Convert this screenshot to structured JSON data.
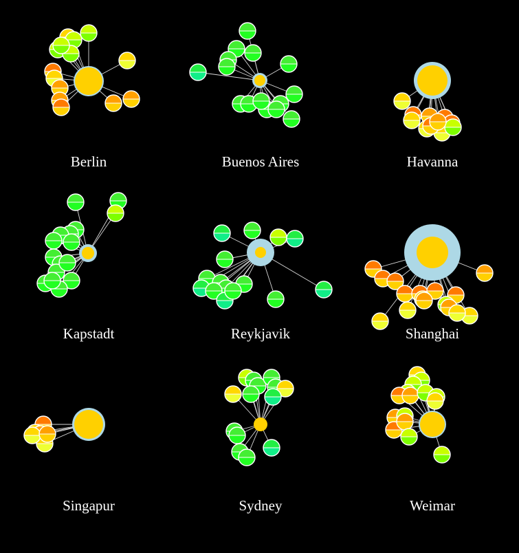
{
  "colors": {
    "background": "#000000",
    "edge": "#d9d9d9",
    "node_stroke": "#ffffff",
    "hub_fill": "#ffd000",
    "hub_halo": "#add8e6"
  },
  "palette": {
    "orange": [
      "#ff7a00",
      "#ffd000"
    ],
    "amber": [
      "#ffa000",
      "#ffd000"
    ],
    "yellow": [
      "#ffd700",
      "#eeff33"
    ],
    "lime": [
      "#c8ff00",
      "#7dff00"
    ],
    "green": [
      "#44ee33",
      "#22ff22"
    ],
    "teal": [
      "#22ee44",
      "#11ee88"
    ]
  },
  "cities": [
    {
      "name": "Berlin",
      "hub": {
        "r": 20,
        "halo": 2
      },
      "nodes": [
        [
          "lime",
          0,
          -70
        ],
        [
          "yellow",
          -30,
          -64
        ],
        [
          "lime",
          -22,
          -60
        ],
        [
          "lime",
          -45,
          -46
        ],
        [
          "orange",
          -52,
          -14
        ],
        [
          "yellow",
          -50,
          -4
        ],
        [
          "amber",
          -42,
          10
        ],
        [
          "amber",
          -42,
          28
        ],
        [
          "orange",
          -40,
          38
        ],
        [
          "yellow",
          56,
          -30
        ],
        [
          "amber",
          36,
          32
        ],
        [
          "amber",
          62,
          26
        ],
        [
          "lime",
          -26,
          -40
        ],
        [
          "lime",
          -40,
          -52
        ]
      ]
    },
    {
      "name": "Buenos Aires",
      "hub": {
        "r": 8,
        "halo": 3
      },
      "nodes": [
        [
          "green",
          -18,
          -72
        ],
        [
          "green",
          -34,
          -46
        ],
        [
          "green",
          -10,
          -40
        ],
        [
          "green",
          -46,
          -30
        ],
        [
          "green",
          -48,
          -20
        ],
        [
          "teal",
          -90,
          -12
        ],
        [
          "green",
          42,
          -24
        ],
        [
          "green",
          50,
          20
        ],
        [
          "green",
          -28,
          34
        ],
        [
          "green",
          -16,
          34
        ],
        [
          "green",
          10,
          42
        ],
        [
          "green",
          30,
          34
        ],
        [
          "green",
          46,
          56
        ],
        [
          "green",
          2,
          30
        ],
        [
          "green",
          24,
          42
        ]
      ]
    },
    {
      "name": "Havanna",
      "hub": {
        "r": 22,
        "halo": 5
      },
      "nodes": [
        [
          "yellow",
          -44,
          30
        ],
        [
          "orange",
          -28,
          50
        ],
        [
          "amber",
          -4,
          52
        ],
        [
          "orange",
          18,
          54
        ],
        [
          "orange",
          28,
          62
        ],
        [
          "yellow",
          14,
          76
        ],
        [
          "lime",
          30,
          68
        ],
        [
          "yellow",
          -8,
          70
        ],
        [
          "orange",
          -2,
          66
        ],
        [
          "amber",
          8,
          60
        ],
        [
          "yellow",
          -30,
          58
        ]
      ]
    },
    {
      "name": "Kapstadt",
      "hub": {
        "r": 9,
        "halo": 4
      },
      "nodes": [
        [
          "green",
          -18,
          -74
        ],
        [
          "green",
          44,
          -76
        ],
        [
          "lime",
          40,
          -58
        ],
        [
          "green",
          -18,
          -34
        ],
        [
          "green",
          -26,
          -28
        ],
        [
          "green",
          -40,
          -26
        ],
        [
          "green",
          -50,
          -18
        ],
        [
          "green",
          -24,
          -16
        ],
        [
          "green",
          -50,
          6
        ],
        [
          "green",
          -40,
          16
        ],
        [
          "green",
          -46,
          28
        ],
        [
          "green",
          -24,
          40
        ],
        [
          "green",
          -62,
          44
        ],
        [
          "green",
          -42,
          52
        ],
        [
          "green",
          -52,
          40
        ],
        [
          "green",
          -30,
          14
        ]
      ]
    },
    {
      "name": "Reykjavik",
      "hub": {
        "r": 8,
        "halo": 12
      },
      "nodes": [
        [
          "teal",
          -56,
          -28
        ],
        [
          "green",
          -12,
          -32
        ],
        [
          "lime",
          26,
          -22
        ],
        [
          "teal",
          50,
          -20
        ],
        [
          "green",
          -52,
          10
        ],
        [
          "green",
          -78,
          38
        ],
        [
          "green",
          -58,
          44
        ],
        [
          "green",
          -50,
          52
        ],
        [
          "teal",
          -86,
          52
        ],
        [
          "green",
          -68,
          56
        ],
        [
          "teal",
          -52,
          70
        ],
        [
          "green",
          -24,
          46
        ],
        [
          "green",
          22,
          68
        ],
        [
          "teal",
          92,
          54
        ],
        [
          "green",
          -40,
          56
        ]
      ]
    },
    {
      "name": "Shanghai",
      "hub": {
        "r": 23,
        "halo": 18
      },
      "nodes": [
        [
          "orange",
          -86,
          24
        ],
        [
          "orange",
          -72,
          38
        ],
        [
          "orange",
          -54,
          42
        ],
        [
          "orange",
          -40,
          60
        ],
        [
          "orange",
          -18,
          60
        ],
        [
          "orange",
          4,
          56
        ],
        [
          "orange",
          34,
          62
        ],
        [
          "yellow",
          -36,
          84
        ],
        [
          "yellow",
          -14,
          68
        ],
        [
          "lime",
          20,
          76
        ],
        [
          "amber",
          -12,
          70
        ],
        [
          "yellow",
          -76,
          100
        ],
        [
          "amber",
          76,
          30
        ],
        [
          "yellow",
          54,
          92
        ],
        [
          "amber",
          24,
          80
        ],
        [
          "yellow",
          36,
          88
        ]
      ]
    },
    {
      "name": "Singapur",
      "hub": {
        "r": 21,
        "halo": 3
      },
      "nodes": [
        [
          "orange",
          -66,
          0
        ],
        [
          "yellow",
          -78,
          12
        ],
        [
          "amber",
          -70,
          14
        ],
        [
          "yellow",
          -64,
          28
        ],
        [
          "yellow",
          -82,
          16
        ],
        [
          "amber",
          -60,
          14
        ]
      ]
    },
    {
      "name": "Sydney",
      "hub": {
        "r": 10,
        "halo": 0
      },
      "nodes": [
        [
          "lime",
          -20,
          -68
        ],
        [
          "green",
          -10,
          -64
        ],
        [
          "green",
          -4,
          -56
        ],
        [
          "green",
          16,
          -68
        ],
        [
          "green",
          22,
          -54
        ],
        [
          "yellow",
          36,
          -52
        ],
        [
          "yellow",
          -40,
          -44
        ],
        [
          "green",
          -14,
          -44
        ],
        [
          "teal",
          18,
          -40
        ],
        [
          "green",
          -38,
          10
        ],
        [
          "green",
          -34,
          16
        ],
        [
          "teal",
          16,
          34
        ],
        [
          "green",
          -30,
          40
        ],
        [
          "green",
          -20,
          48
        ]
      ]
    },
    {
      "name": "Weimar",
      "hub": {
        "r": 18,
        "halo": 2
      },
      "nodes": [
        [
          "yellow",
          -22,
          -72
        ],
        [
          "lime",
          -16,
          -64
        ],
        [
          "lime",
          -28,
          -58
        ],
        [
          "lime",
          -36,
          -46
        ],
        [
          "orange",
          -48,
          -42
        ],
        [
          "amber",
          -32,
          -42
        ],
        [
          "lime",
          -10,
          -46
        ],
        [
          "lime",
          6,
          -40
        ],
        [
          "amber",
          -54,
          -10
        ],
        [
          "orange",
          -56,
          8
        ],
        [
          "lime",
          -40,
          -12
        ],
        [
          "amber",
          -40,
          -4
        ],
        [
          "lime",
          -34,
          18
        ],
        [
          "lime",
          14,
          44
        ],
        [
          "yellow",
          4,
          -34
        ]
      ]
    }
  ]
}
